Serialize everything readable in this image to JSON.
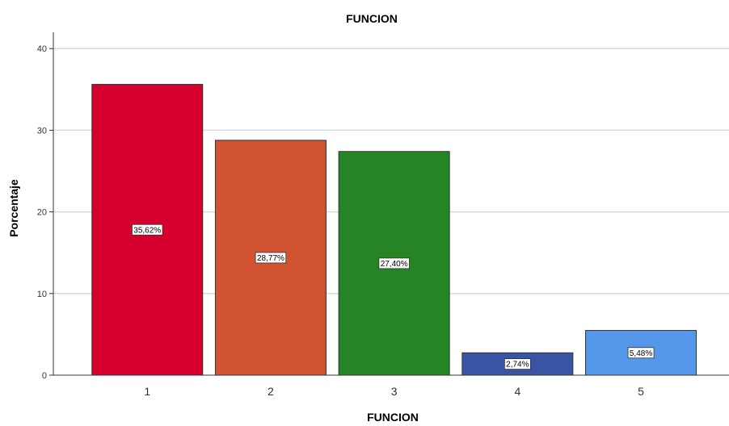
{
  "chart_data": {
    "type": "bar",
    "title": "FUNCION",
    "xlabel": "FUNCION",
    "ylabel": "Porcentaje",
    "categories": [
      "1",
      "2",
      "3",
      "4",
      "5"
    ],
    "values": [
      35.62,
      28.77,
      27.4,
      2.74,
      5.48
    ],
    "data_labels": [
      "35,62%",
      "28,77%",
      "27,40%",
      "2,74%",
      "5,48%"
    ],
    "colors": [
      "#d5002e",
      "#d15331",
      "#258525",
      "#3a54a4",
      "#5597e8"
    ],
    "ylim": [
      0,
      42
    ],
    "yticks": [
      0,
      10,
      20,
      30,
      40
    ],
    "ytick_labels": [
      "0",
      "10",
      "20",
      "30",
      "40"
    ],
    "grid": true,
    "legend": "none"
  }
}
